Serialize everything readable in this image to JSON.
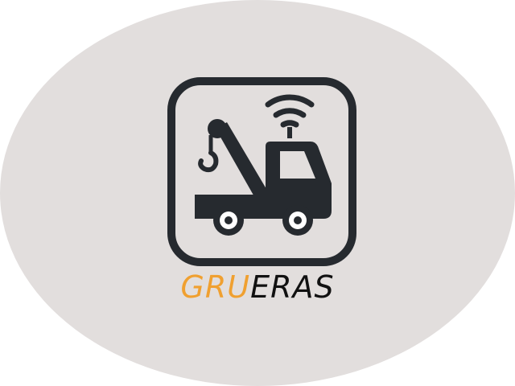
{
  "logo": {
    "brand_text_highlight": "GRU",
    "brand_text_rest": "ERAS",
    "icon": "tow-truck-gps-icon",
    "colors": {
      "background_oval": "#e2dedd",
      "icon_dark": "#262a2f",
      "highlight": "#f0a030",
      "text_dark": "#111111"
    }
  }
}
